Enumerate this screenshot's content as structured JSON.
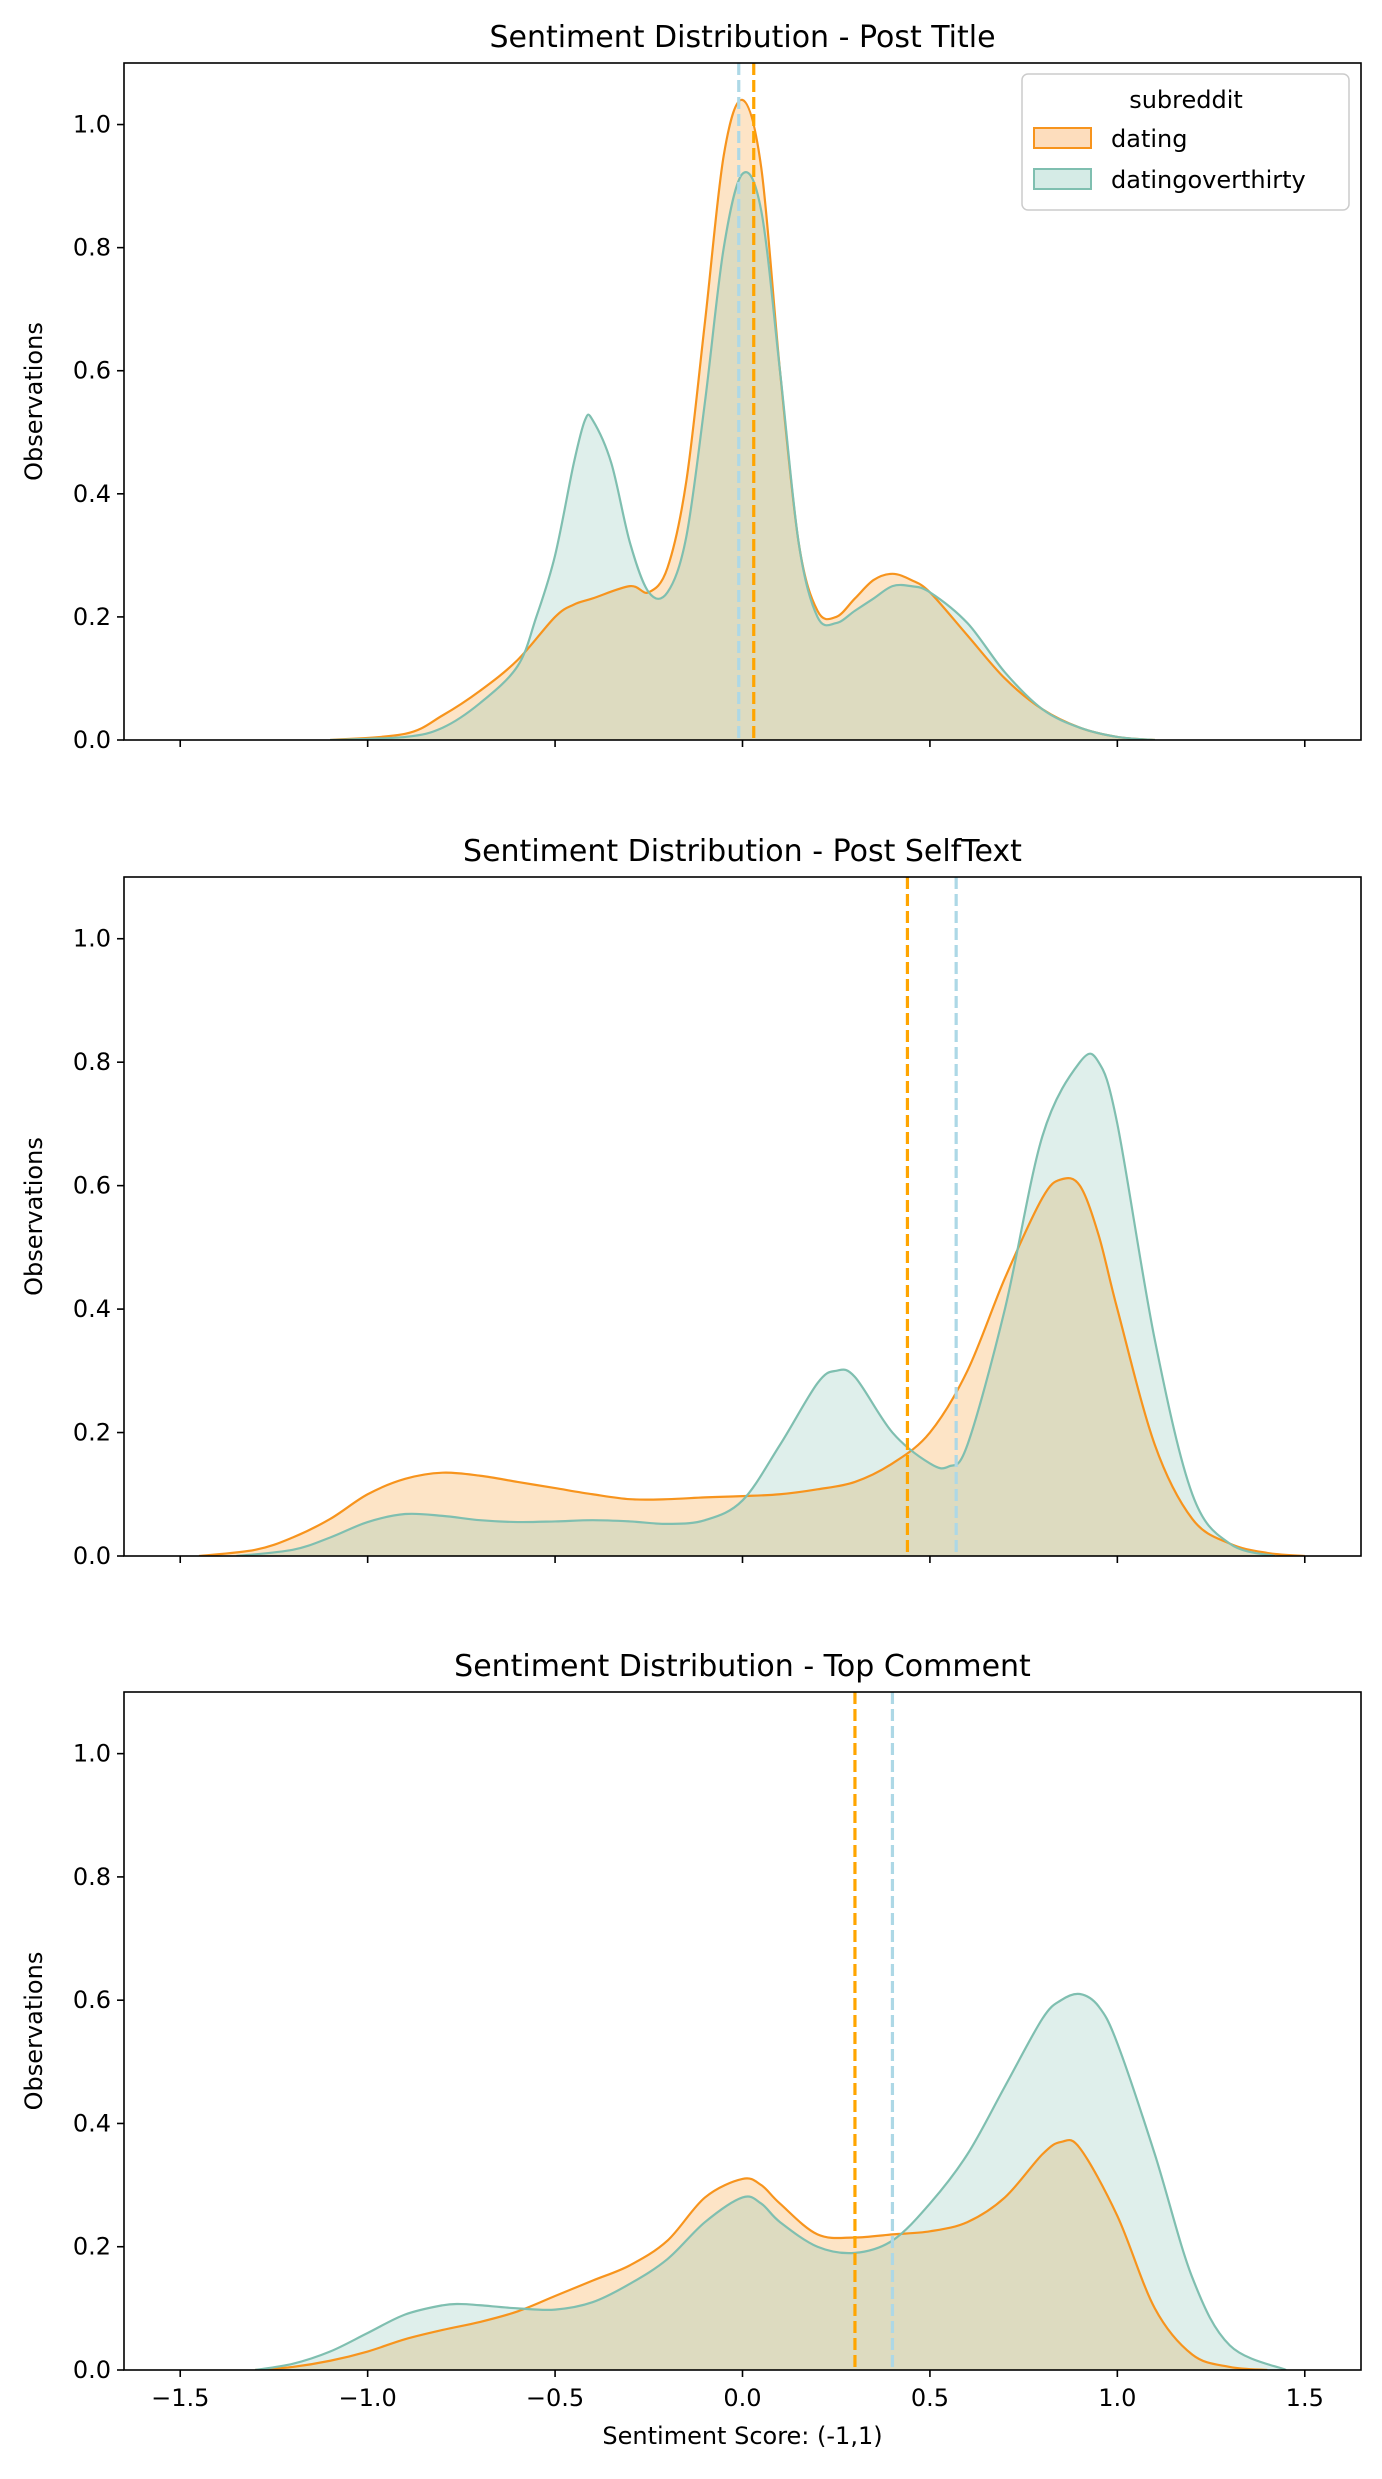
{
  "legend": {
    "title": "subreddit",
    "entries": [
      {
        "name": "dating",
        "line": "#F7941D",
        "fill": "#FDDDBD"
      },
      {
        "name": "datingoverthirty",
        "line": "#7FBFB0",
        "fill": "#D5EBE6"
      }
    ]
  },
  "chart_data": [
    {
      "type": "area",
      "title": "Sentiment Distribution - Post Title",
      "ylabel": "Observations",
      "xlabel": "",
      "xlim": [
        -1.65,
        1.65
      ],
      "ylim": [
        0,
        1.1
      ],
      "xticks": [
        -1.5,
        -1.0,
        -0.5,
        0.0,
        0.5,
        1.0,
        1.5
      ],
      "xtick_labels": [
        "−1.5",
        "−1.0",
        "−0.5",
        "0.0",
        "0.5",
        "1.0",
        "1.5"
      ],
      "show_xtick_labels": false,
      "yticks": [
        0.0,
        0.2,
        0.4,
        0.6,
        0.8,
        1.0
      ],
      "ytick_labels": [
        "0.0",
        "0.2",
        "0.4",
        "0.6",
        "0.8",
        "1.0"
      ],
      "legend_position": "top-right",
      "series": [
        {
          "name": "dating",
          "mean": 0.03,
          "x": [
            -1.1,
            -0.9,
            -0.8,
            -0.7,
            -0.6,
            -0.5,
            -0.45,
            -0.4,
            -0.3,
            -0.25,
            -0.2,
            -0.15,
            -0.1,
            -0.05,
            0.0,
            0.05,
            0.1,
            0.15,
            0.2,
            0.25,
            0.3,
            0.35,
            0.4,
            0.45,
            0.5,
            0.6,
            0.7,
            0.8,
            0.9,
            1.0,
            1.1
          ],
          "y": [
            0.0,
            0.01,
            0.04,
            0.08,
            0.13,
            0.2,
            0.22,
            0.23,
            0.25,
            0.24,
            0.28,
            0.42,
            0.68,
            0.95,
            1.04,
            0.93,
            0.6,
            0.32,
            0.21,
            0.2,
            0.23,
            0.26,
            0.27,
            0.26,
            0.24,
            0.17,
            0.1,
            0.05,
            0.02,
            0.005,
            0.0
          ]
        },
        {
          "name": "datingoverthirty",
          "mean": -0.01,
          "x": [
            -1.1,
            -0.9,
            -0.8,
            -0.7,
            -0.6,
            -0.55,
            -0.5,
            -0.45,
            -0.42,
            -0.4,
            -0.35,
            -0.3,
            -0.25,
            -0.2,
            -0.15,
            -0.1,
            -0.05,
            0.0,
            0.05,
            0.1,
            0.15,
            0.2,
            0.25,
            0.3,
            0.35,
            0.4,
            0.45,
            0.5,
            0.6,
            0.7,
            0.8,
            0.9,
            1.0,
            1.1
          ],
          "y": [
            0.0,
            0.005,
            0.02,
            0.06,
            0.12,
            0.2,
            0.3,
            0.45,
            0.52,
            0.52,
            0.45,
            0.32,
            0.24,
            0.24,
            0.33,
            0.55,
            0.8,
            0.92,
            0.86,
            0.6,
            0.32,
            0.2,
            0.19,
            0.21,
            0.23,
            0.25,
            0.25,
            0.24,
            0.19,
            0.11,
            0.05,
            0.02,
            0.005,
            0.0
          ]
        }
      ]
    },
    {
      "type": "area",
      "title": "Sentiment Distribution - Post SelfText",
      "ylabel": "Observations",
      "xlabel": "",
      "xlim": [
        -1.65,
        1.65
      ],
      "ylim": [
        0,
        1.1
      ],
      "xticks": [
        -1.5,
        -1.0,
        -0.5,
        0.0,
        0.5,
        1.0,
        1.5
      ],
      "xtick_labels": [
        "−1.5",
        "−1.0",
        "−0.5",
        "0.0",
        "0.5",
        "1.0",
        "1.5"
      ],
      "show_xtick_labels": false,
      "yticks": [
        0.0,
        0.2,
        0.4,
        0.6,
        0.8,
        1.0
      ],
      "ytick_labels": [
        "0.0",
        "0.2",
        "0.4",
        "0.6",
        "0.8",
        "1.0"
      ],
      "series": [
        {
          "name": "dating",
          "mean": 0.44,
          "x": [
            -1.45,
            -1.3,
            -1.2,
            -1.1,
            -1.0,
            -0.9,
            -0.8,
            -0.7,
            -0.6,
            -0.5,
            -0.4,
            -0.3,
            -0.2,
            -0.1,
            0.0,
            0.1,
            0.2,
            0.3,
            0.4,
            0.5,
            0.6,
            0.7,
            0.8,
            0.85,
            0.9,
            0.95,
            1.0,
            1.1,
            1.2,
            1.3,
            1.4,
            1.5
          ],
          "y": [
            0.0,
            0.01,
            0.03,
            0.06,
            0.1,
            0.125,
            0.135,
            0.13,
            0.12,
            0.11,
            0.1,
            0.092,
            0.092,
            0.095,
            0.097,
            0.1,
            0.108,
            0.12,
            0.15,
            0.2,
            0.3,
            0.45,
            0.58,
            0.61,
            0.6,
            0.52,
            0.4,
            0.18,
            0.06,
            0.02,
            0.005,
            0.0
          ]
        },
        {
          "name": "datingoverthirty",
          "mean": 0.57,
          "x": [
            -1.35,
            -1.2,
            -1.1,
            -1.0,
            -0.9,
            -0.8,
            -0.7,
            -0.6,
            -0.5,
            -0.4,
            -0.3,
            -0.2,
            -0.1,
            0.0,
            0.1,
            0.2,
            0.25,
            0.3,
            0.4,
            0.5,
            0.55,
            0.6,
            0.7,
            0.8,
            0.9,
            0.95,
            1.0,
            1.1,
            1.2,
            1.3,
            1.42
          ],
          "y": [
            0.0,
            0.01,
            0.03,
            0.055,
            0.068,
            0.065,
            0.058,
            0.055,
            0.056,
            0.058,
            0.056,
            0.052,
            0.058,
            0.09,
            0.18,
            0.28,
            0.3,
            0.29,
            0.2,
            0.15,
            0.145,
            0.18,
            0.4,
            0.68,
            0.8,
            0.8,
            0.7,
            0.35,
            0.1,
            0.02,
            0.0
          ]
        }
      ]
    },
    {
      "type": "area",
      "title": "Sentiment Distribution - Top Comment",
      "ylabel": "Observations",
      "xlabel": "Sentiment Score: (-1,1)",
      "xlim": [
        -1.65,
        1.65
      ],
      "ylim": [
        0,
        1.1
      ],
      "xticks": [
        -1.5,
        -1.0,
        -0.5,
        0.0,
        0.5,
        1.0,
        1.5
      ],
      "xtick_labels": [
        "−1.5",
        "−1.0",
        "−0.5",
        "0.0",
        "0.5",
        "1.0",
        "1.5"
      ],
      "show_xtick_labels": true,
      "yticks": [
        0.0,
        0.2,
        0.4,
        0.6,
        0.8,
        1.0
      ],
      "ytick_labels": [
        "0.0",
        "0.2",
        "0.4",
        "0.6",
        "0.8",
        "1.0"
      ],
      "series": [
        {
          "name": "dating",
          "mean": 0.3,
          "x": [
            -1.3,
            -1.2,
            -1.1,
            -1.0,
            -0.9,
            -0.8,
            -0.7,
            -0.6,
            -0.5,
            -0.4,
            -0.3,
            -0.2,
            -0.1,
            0.0,
            0.05,
            0.1,
            0.2,
            0.3,
            0.4,
            0.5,
            0.6,
            0.7,
            0.8,
            0.85,
            0.9,
            1.0,
            1.1,
            1.2,
            1.3,
            1.4
          ],
          "y": [
            0.0,
            0.005,
            0.015,
            0.03,
            0.05,
            0.065,
            0.078,
            0.095,
            0.12,
            0.145,
            0.17,
            0.21,
            0.28,
            0.31,
            0.3,
            0.27,
            0.22,
            0.215,
            0.22,
            0.225,
            0.24,
            0.28,
            0.35,
            0.37,
            0.36,
            0.25,
            0.1,
            0.025,
            0.005,
            0.0
          ]
        },
        {
          "name": "datingoverthirty",
          "mean": 0.4,
          "x": [
            -1.3,
            -1.2,
            -1.1,
            -1.0,
            -0.9,
            -0.8,
            -0.75,
            -0.7,
            -0.6,
            -0.5,
            -0.4,
            -0.3,
            -0.2,
            -0.1,
            0.0,
            0.05,
            0.1,
            0.2,
            0.3,
            0.4,
            0.5,
            0.6,
            0.7,
            0.8,
            0.85,
            0.9,
            0.95,
            1.0,
            1.1,
            1.2,
            1.3,
            1.45
          ],
          "y": [
            0.0,
            0.01,
            0.03,
            0.06,
            0.09,
            0.105,
            0.107,
            0.105,
            0.1,
            0.098,
            0.11,
            0.14,
            0.18,
            0.24,
            0.28,
            0.27,
            0.24,
            0.2,
            0.19,
            0.21,
            0.27,
            0.35,
            0.46,
            0.57,
            0.6,
            0.61,
            0.59,
            0.53,
            0.35,
            0.15,
            0.04,
            0.0
          ]
        }
      ]
    }
  ]
}
